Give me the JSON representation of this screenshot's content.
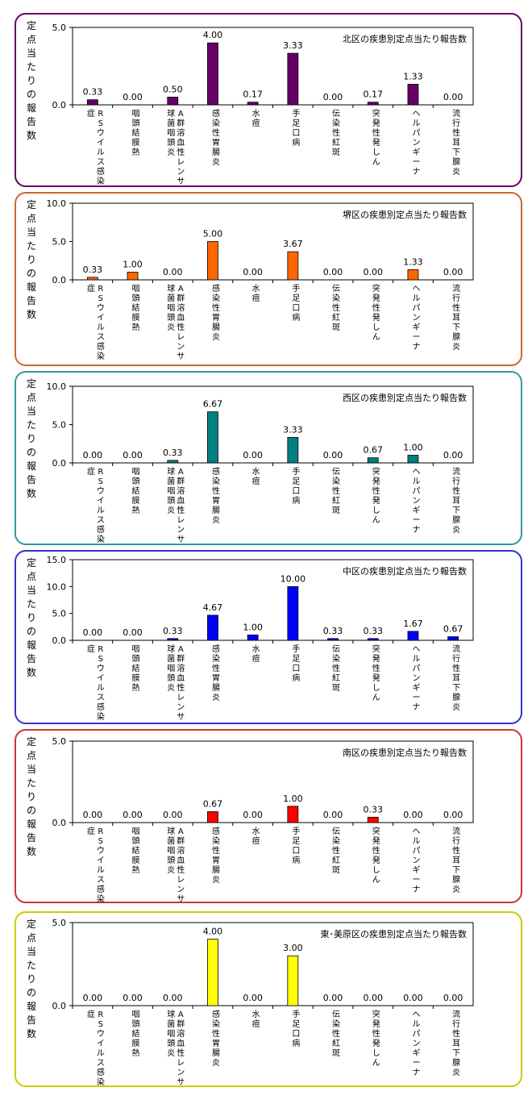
{
  "y_axis_chars": [
    "定",
    "点",
    "当",
    "た",
    "り",
    "の",
    "報",
    "告",
    "数"
  ],
  "categories": [
    {
      "lines": [
        "RSウイルス感染",
        "症"
      ]
    },
    {
      "lines": [
        "咽頭結膜熱"
      ]
    },
    {
      "lines": [
        "A群溶血性レンサ",
        "球菌咽頭炎"
      ]
    },
    {
      "lines": [
        "感染性胃腸炎"
      ]
    },
    {
      "lines": [
        "水痘"
      ]
    },
    {
      "lines": [
        "手足口病"
      ]
    },
    {
      "lines": [
        "伝染性紅斑"
      ]
    },
    {
      "lines": [
        "突発性発しん"
      ]
    },
    {
      "lines": [
        "ヘルパンギーナ"
      ]
    },
    {
      "lines": [
        "流行性耳下腺炎"
      ]
    }
  ],
  "chart_data": [
    {
      "type": "bar",
      "title": "北区の疾患別定点当たり報告数",
      "color": "#660066",
      "yticks": [
        "5.0",
        "0.0"
      ],
      "ylim": [
        0,
        5
      ],
      "values": [
        0.33,
        0.0,
        0.5,
        4.0,
        0.17,
        3.33,
        0.0,
        0.17,
        1.33,
        0.0
      ],
      "labels": [
        "0.33",
        "0.00",
        "0.50",
        "4.00",
        "0.17",
        "3.33",
        "0.00",
        "0.17",
        "1.33",
        "0.00"
      ]
    },
    {
      "type": "bar",
      "title": "堺区の疾患別定点当たり報告数",
      "color": "#ff6600",
      "yticks": [
        "10.0",
        "5.0",
        "0.0"
      ],
      "ylim": [
        0,
        10
      ],
      "values": [
        0.33,
        1.0,
        0.0,
        5.0,
        0.0,
        3.67,
        0.0,
        0.0,
        1.33,
        0.0
      ],
      "labels": [
        "0.33",
        "1.00",
        "0.00",
        "5.00",
        "0.00",
        "3.67",
        "0.00",
        "0.00",
        "1.33",
        "0.00"
      ]
    },
    {
      "type": "bar",
      "title": "西区の疾患別定点当たり報告数",
      "color": "#008080",
      "yticks": [
        "10.0",
        "5.0",
        "0.0"
      ],
      "ylim": [
        0,
        10
      ],
      "values": [
        0.0,
        0.0,
        0.33,
        6.67,
        0.0,
        3.33,
        0.0,
        0.67,
        1.0,
        0.0
      ],
      "labels": [
        "0.00",
        "0.00",
        "0.33",
        "6.67",
        "0.00",
        "3.33",
        "0.00",
        "0.67",
        "1.00",
        "0.00"
      ]
    },
    {
      "type": "bar",
      "title": "中区の疾患別定点当たり報告数",
      "color": "#0000ff",
      "yticks": [
        "15.0",
        "10.0",
        "5.0",
        "0.0"
      ],
      "ylim": [
        0,
        15
      ],
      "values": [
        0.0,
        0.0,
        0.33,
        4.67,
        1.0,
        10.0,
        0.33,
        0.33,
        1.67,
        0.67
      ],
      "labels": [
        "0.00",
        "0.00",
        "0.33",
        "4.67",
        "1.00",
        "10.00",
        "0.33",
        "0.33",
        "1.67",
        "0.67"
      ]
    },
    {
      "type": "bar",
      "title": "南区の疾患別定点当たり報告数",
      "color": "#ff0000",
      "yticks": [
        "5.0",
        "0.0"
      ],
      "ylim": [
        0,
        5
      ],
      "values": [
        0.0,
        0.0,
        0.0,
        0.67,
        0.0,
        1.0,
        0.0,
        0.33,
        0.0,
        0.0
      ],
      "labels": [
        "0.00",
        "0.00",
        "0.00",
        "0.67",
        "0.00",
        "1.00",
        "0.00",
        "0.33",
        "0.00",
        "0.00"
      ]
    },
    {
      "type": "bar",
      "title": "東･美原区の疾患別定点当たり報告数",
      "color": "#ffff00",
      "yticks": [
        "5.0",
        "0.0"
      ],
      "ylim": [
        0,
        5
      ],
      "values": [
        0.0,
        0.0,
        0.0,
        4.0,
        0.0,
        3.0,
        0.0,
        0.0,
        0.0,
        0.0
      ],
      "labels": [
        "0.00",
        "0.00",
        "0.00",
        "4.00",
        "0.00",
        "3.00",
        "0.00",
        "0.00",
        "0.00",
        "0.00"
      ]
    }
  ],
  "panel_border_colors": [
    "#660066",
    "#cc6633",
    "#339999",
    "#3333cc",
    "#cc3333",
    "#cccc00"
  ]
}
